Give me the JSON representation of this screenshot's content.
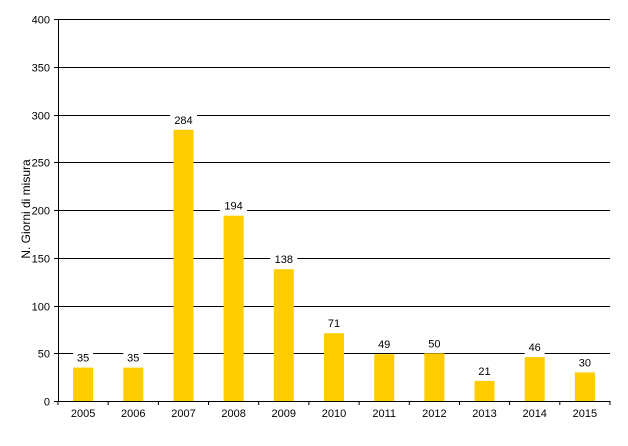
{
  "chart_data": {
    "type": "bar",
    "title": "",
    "xlabel": "",
    "ylabel": "N. Giorni di misura",
    "categories": [
      "2005",
      "2006",
      "2007",
      "2008",
      "2009",
      "2010",
      "2011",
      "2012",
      "2013",
      "2014",
      "2015"
    ],
    "values": [
      35,
      35,
      284,
      194,
      138,
      71,
      49,
      50,
      21,
      46,
      30
    ],
    "data_labels": [
      "35",
      "35",
      "284",
      "194",
      "138",
      "71",
      "49",
      "50",
      "21",
      "46",
      "30"
    ],
    "ylim": [
      0,
      400
    ],
    "yticks": [
      0,
      50,
      100,
      150,
      200,
      250,
      300,
      350,
      400
    ],
    "ytick_labels": [
      "0",
      "50",
      "100",
      "150",
      "200",
      "250",
      "300",
      "350",
      "400"
    ],
    "grid": true,
    "legend": "none",
    "colors": {
      "bar": "#FFCC00",
      "grid": "#000000",
      "axis": "#000000",
      "label_background": "#FFFFFF"
    }
  }
}
